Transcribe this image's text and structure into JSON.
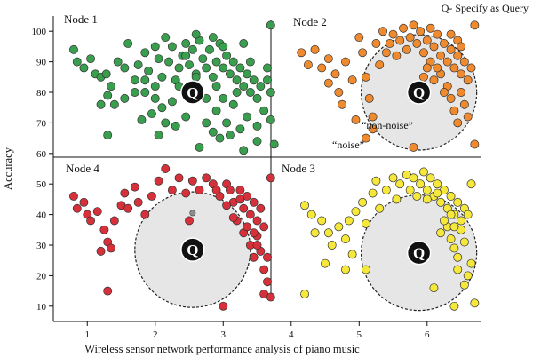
{
  "legend_text": "Q- Specify as Query",
  "chart_data": {
    "type": "scatter",
    "title": "",
    "xlabel": "Wireless sensor network performance analysis of piano music",
    "ylabel": "Accuracy",
    "xlim": [
      0.5,
      6.8
    ],
    "ylim": [
      5,
      105
    ],
    "xticks": [
      "1",
      "2",
      "3",
      "4",
      "5",
      "6"
    ],
    "yticks": [
      "10",
      "20",
      "30",
      "40",
      "50",
      "60",
      "70",
      "80",
      "90",
      "100"
    ],
    "query_label": "Q",
    "zone_labels": {
      "noise": "“noise”",
      "non_noise": "“non-noise”"
    },
    "colors": {
      "node1": "#3a9e4f",
      "node2": "#f08a2f",
      "node3": "#f5e83a",
      "node4": "#d6303a"
    },
    "nodes": [
      {
        "name": "Node 1",
        "color": "#3a9e4f",
        "query": [
          2.55,
          80.0
        ],
        "circle_radius": null,
        "points": [
          [
            0.8,
            94
          ],
          [
            0.85,
            90
          ],
          [
            0.95,
            88
          ],
          [
            1.05,
            91
          ],
          [
            1.12,
            86
          ],
          [
            1.2,
            85
          ],
          [
            1.28,
            86
          ],
          [
            1.35,
            82
          ],
          [
            1.45,
            90
          ],
          [
            1.55,
            88
          ],
          [
            1.6,
            96
          ],
          [
            1.7,
            84
          ],
          [
            1.75,
            89
          ],
          [
            1.85,
            93
          ],
          [
            1.9,
            87
          ],
          [
            2.0,
            95
          ],
          [
            2.05,
            91
          ],
          [
            2.1,
            85
          ],
          [
            2.15,
            98
          ],
          [
            2.2,
            90
          ],
          [
            2.25,
            95
          ],
          [
            2.3,
            84
          ],
          [
            2.35,
            88
          ],
          [
            2.4,
            92
          ],
          [
            2.45,
            96
          ],
          [
            2.5,
            89
          ],
          [
            2.55,
            94
          ],
          [
            2.6,
            86
          ],
          [
            2.65,
            97
          ],
          [
            2.7,
            91
          ],
          [
            2.75,
            88
          ],
          [
            2.8,
            94
          ],
          [
            2.85,
            85
          ],
          [
            2.9,
            90
          ],
          [
            2.95,
            96
          ],
          [
            3.0,
            88
          ],
          [
            3.05,
            92
          ],
          [
            3.1,
            86
          ],
          [
            3.15,
            90
          ],
          [
            3.2,
            84
          ],
          [
            3.25,
            88
          ],
          [
            3.3,
            82
          ],
          [
            3.35,
            86
          ],
          [
            3.4,
            80
          ],
          [
            3.45,
            84
          ],
          [
            3.5,
            78
          ],
          [
            3.55,
            82
          ],
          [
            3.0,
            95
          ],
          [
            2.85,
            98
          ],
          [
            2.6,
            99
          ],
          [
            1.3,
            79
          ],
          [
            1.2,
            76
          ],
          [
            1.4,
            76
          ],
          [
            1.55,
            78
          ],
          [
            1.7,
            80
          ],
          [
            1.85,
            80
          ],
          [
            2.0,
            78
          ],
          [
            2.1,
            75
          ],
          [
            1.95,
            73
          ],
          [
            2.25,
            77
          ],
          [
            1.8,
            71
          ],
          [
            2.15,
            70
          ],
          [
            2.05,
            66
          ],
          [
            1.3,
            66
          ],
          [
            2.3,
            69
          ],
          [
            2.45,
            72
          ],
          [
            2.75,
            70
          ],
          [
            2.9,
            74
          ],
          [
            3.05,
            70
          ],
          [
            3.15,
            76
          ],
          [
            3.35,
            72
          ],
          [
            3.1,
            66
          ],
          [
            2.95,
            65
          ],
          [
            3.25,
            68
          ],
          [
            3.5,
            69
          ],
          [
            3.6,
            74
          ],
          [
            3.7,
            71
          ],
          [
            2.65,
            62
          ],
          [
            3.3,
            61
          ],
          [
            3.5,
            64
          ],
          [
            3.75,
            63
          ],
          [
            3.65,
            84
          ],
          [
            3.65,
            88
          ],
          [
            3.7,
            80
          ],
          [
            3.7,
            102
          ],
          [
            1.85,
            84
          ],
          [
            2.0,
            82
          ],
          [
            2.35,
            82
          ],
          [
            2.6,
            85
          ],
          [
            2.9,
            82
          ],
          [
            3.0,
            78
          ],
          [
            3.2,
            80
          ],
          [
            3.4,
            90
          ],
          [
            3.3,
            96
          ],
          [
            2.75,
            78
          ],
          [
            2.45,
            92
          ],
          [
            2.85,
            67
          ]
        ]
      },
      {
        "name": "Node 2",
        "color": "#f08a2f",
        "query": [
          5.88,
          80.0
        ],
        "circle_radius": 0.85,
        "points": [
          [
            4.15,
            93
          ],
          [
            4.25,
            89
          ],
          [
            4.35,
            94
          ],
          [
            4.45,
            88
          ],
          [
            4.55,
            91
          ],
          [
            4.65,
            86
          ],
          [
            4.7,
            80
          ],
          [
            4.75,
            76
          ],
          [
            4.55,
            83
          ],
          [
            4.8,
            90
          ],
          [
            4.9,
            84
          ],
          [
            5.0,
            98
          ],
          [
            5.05,
            93
          ],
          [
            5.1,
            85
          ],
          [
            5.15,
            78
          ],
          [
            5.2,
            72
          ],
          [
            5.25,
            96
          ],
          [
            5.3,
            89
          ],
          [
            5.35,
            100
          ],
          [
            5.4,
            93
          ],
          [
            5.45,
            96
          ],
          [
            5.5,
            99
          ],
          [
            5.55,
            92
          ],
          [
            5.6,
            97
          ],
          [
            5.65,
            101
          ],
          [
            5.7,
            94
          ],
          [
            5.75,
            98
          ],
          [
            5.8,
            102
          ],
          [
            5.85,
            96
          ],
          [
            5.9,
            100
          ],
          [
            5.95,
            93
          ],
          [
            6.0,
            97
          ],
          [
            6.05,
            101
          ],
          [
            6.1,
            95
          ],
          [
            6.15,
            99
          ],
          [
            6.2,
            92
          ],
          [
            6.25,
            96
          ],
          [
            6.3,
            90
          ],
          [
            6.35,
            94
          ],
          [
            6.4,
            88
          ],
          [
            6.45,
            92
          ],
          [
            6.5,
            86
          ],
          [
            6.55,
            90
          ],
          [
            6.6,
            84
          ],
          [
            6.65,
            88
          ],
          [
            6.3,
            82
          ],
          [
            6.35,
            78
          ],
          [
            6.4,
            74
          ],
          [
            6.45,
            70
          ],
          [
            6.5,
            80
          ],
          [
            6.55,
            76
          ],
          [
            6.6,
            72
          ],
          [
            6.2,
            86
          ],
          [
            6.25,
            80
          ],
          [
            6.15,
            88
          ],
          [
            6.1,
            84
          ],
          [
            6.05,
            90
          ],
          [
            6.7,
            102
          ],
          [
            6.7,
            63
          ],
          [
            5.1,
            65
          ],
          [
            4.95,
            71
          ],
          [
            5.8,
            62
          ],
          [
            5.2,
            68
          ],
          [
            6.0,
            88
          ],
          [
            5.95,
            85
          ],
          [
            6.35,
            99
          ],
          [
            6.45,
            97
          ],
          [
            6.5,
            95
          ]
        ]
      },
      {
        "name": "Node 3",
        "color": "#f5e83a",
        "query": [
          5.88,
          27.5
        ],
        "circle_radius": 0.85,
        "points": [
          [
            4.2,
            43
          ],
          [
            4.3,
            40
          ],
          [
            4.35,
            34
          ],
          [
            4.45,
            38
          ],
          [
            4.55,
            34
          ],
          [
            4.6,
            30
          ],
          [
            4.7,
            36
          ],
          [
            4.8,
            32
          ],
          [
            4.9,
            27
          ],
          [
            4.85,
            38
          ],
          [
            4.95,
            41
          ],
          [
            5.05,
            44
          ],
          [
            5.1,
            37
          ],
          [
            5.2,
            47
          ],
          [
            5.25,
            51
          ],
          [
            5.3,
            42
          ],
          [
            5.4,
            48
          ],
          [
            5.5,
            52
          ],
          [
            5.55,
            45
          ],
          [
            5.6,
            50
          ],
          [
            5.7,
            53
          ],
          [
            5.75,
            48
          ],
          [
            5.8,
            52
          ],
          [
            5.85,
            46
          ],
          [
            5.9,
            50
          ],
          [
            5.95,
            54
          ],
          [
            6.0,
            48
          ],
          [
            6.05,
            52
          ],
          [
            6.1,
            46
          ],
          [
            6.15,
            50
          ],
          [
            6.2,
            44
          ],
          [
            6.25,
            48
          ],
          [
            6.3,
            42
          ],
          [
            6.35,
            46
          ],
          [
            6.4,
            40
          ],
          [
            6.45,
            44
          ],
          [
            6.5,
            38
          ],
          [
            6.55,
            42
          ],
          [
            6.3,
            36
          ],
          [
            6.35,
            32
          ],
          [
            6.4,
            29
          ],
          [
            6.45,
            26
          ],
          [
            6.5,
            35
          ],
          [
            6.55,
            31
          ],
          [
            6.6,
            40
          ],
          [
            6.25,
            38
          ],
          [
            6.35,
            40
          ],
          [
            6.2,
            34
          ],
          [
            6.65,
            50
          ],
          [
            6.65,
            24
          ],
          [
            6.6,
            20
          ],
          [
            6.55,
            17
          ],
          [
            6.45,
            22
          ],
          [
            6.7,
            11
          ],
          [
            6.4,
            10
          ],
          [
            6.1,
            16
          ],
          [
            4.8,
            22
          ],
          [
            4.5,
            24
          ],
          [
            4.2,
            14
          ],
          [
            5.1,
            22
          ],
          [
            6.15,
            47
          ],
          [
            6.0,
            45
          ],
          [
            6.4,
            36
          ]
        ]
      },
      {
        "name": "Node 4",
        "color": "#d6303a",
        "query": [
          2.55,
          28.5
        ],
        "circle_radius": 0.85,
        "points": [
          [
            0.8,
            46
          ],
          [
            0.85,
            42
          ],
          [
            0.95,
            44
          ],
          [
            1.0,
            40
          ],
          [
            1.05,
            38
          ],
          [
            1.15,
            41
          ],
          [
            1.25,
            35
          ],
          [
            1.3,
            31
          ],
          [
            1.2,
            28
          ],
          [
            1.35,
            29
          ],
          [
            1.4,
            38
          ],
          [
            1.5,
            43
          ],
          [
            1.55,
            47
          ],
          [
            1.6,
            42
          ],
          [
            1.7,
            49
          ],
          [
            1.75,
            44
          ],
          [
            1.85,
            40
          ],
          [
            1.95,
            46
          ],
          [
            2.05,
            51
          ],
          [
            2.15,
            55
          ],
          [
            2.25,
            48
          ],
          [
            2.35,
            52
          ],
          [
            2.45,
            47
          ],
          [
            2.55,
            51
          ],
          [
            2.65,
            48
          ],
          [
            2.75,
            52
          ],
          [
            2.85,
            50
          ],
          [
            2.95,
            46
          ],
          [
            3.05,
            50
          ],
          [
            3.15,
            44
          ],
          [
            3.25,
            48
          ],
          [
            3.3,
            42
          ],
          [
            3.35,
            46
          ],
          [
            3.4,
            40
          ],
          [
            3.45,
            44
          ],
          [
            3.5,
            38
          ],
          [
            3.55,
            42
          ],
          [
            3.6,
            36
          ],
          [
            3.3,
            34
          ],
          [
            3.4,
            30
          ],
          [
            3.45,
            26
          ],
          [
            3.5,
            33
          ],
          [
            3.55,
            28
          ],
          [
            3.6,
            22
          ],
          [
            3.65,
            26
          ],
          [
            3.65,
            18
          ],
          [
            3.6,
            14
          ],
          [
            3.7,
            13
          ],
          [
            3.2,
            38
          ],
          [
            3.25,
            45
          ],
          [
            3.15,
            39
          ],
          [
            3.05,
            43
          ],
          [
            3.35,
            36
          ],
          [
            3.45,
            34
          ],
          [
            3.5,
            30
          ],
          [
            3.1,
            48
          ],
          [
            2.9,
            48
          ],
          [
            3.7,
            52
          ],
          [
            3.0,
            10
          ],
          [
            1.3,
            15
          ],
          [
            2.5,
            38
          ]
        ]
      }
    ]
  }
}
